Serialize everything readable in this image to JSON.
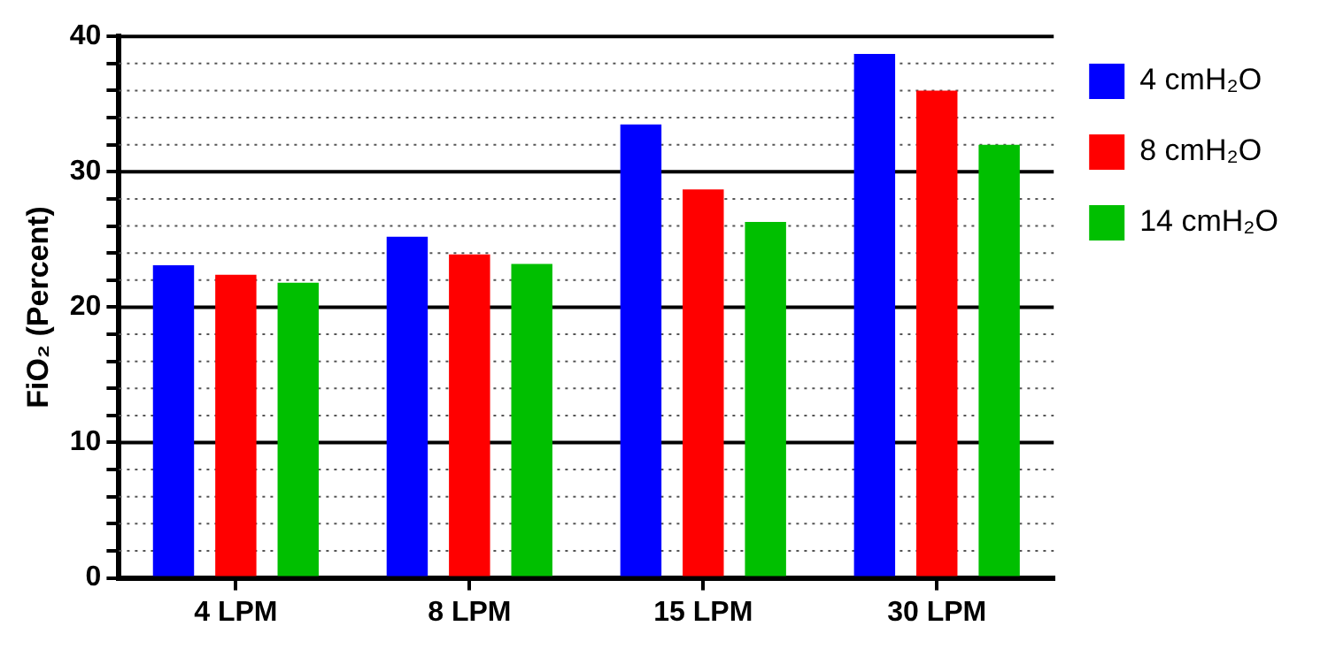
{
  "chart_data": {
    "type": "bar",
    "ylabel": "FiO₂ (Percent)",
    "categories": [
      "4 LPM",
      "8 LPM",
      "15 LPM",
      "30 LPM"
    ],
    "series": [
      {
        "name": "4 cmH₂O",
        "color": "#0000ff",
        "values": [
          23.1,
          25.2,
          33.5,
          38.7
        ]
      },
      {
        "name": "8 cmH₂O",
        "color": "#ff0000",
        "values": [
          22.4,
          23.9,
          28.7,
          36.0
        ]
      },
      {
        "name": "14 cmH₂O",
        "color": "#00bf00",
        "values": [
          21.8,
          23.2,
          26.3,
          32.0
        ]
      }
    ],
    "ylim": [
      0,
      40
    ],
    "yticks": [
      0,
      {
        "value": 2,
        "label": null
      },
      {
        "value": 4,
        "label": null
      },
      {
        "value": 6,
        "label": null
      },
      {
        "value": 8,
        "label": null
      },
      10,
      {
        "value": 12,
        "label": null
      },
      {
        "value": 14,
        "label": null
      },
      {
        "value": 16,
        "label": null
      },
      {
        "value": 18,
        "label": null
      },
      20,
      {
        "value": 22,
        "label": null
      },
      {
        "value": 24,
        "label": null
      },
      {
        "value": 26,
        "label": null
      },
      {
        "value": 28,
        "label": null
      },
      30,
      {
        "value": 32,
        "label": null
      },
      {
        "value": 34,
        "label": null
      },
      {
        "value": 36,
        "label": null
      },
      {
        "value": 38,
        "label": null
      },
      40
    ],
    "grid": "y",
    "legend": "top right"
  }
}
